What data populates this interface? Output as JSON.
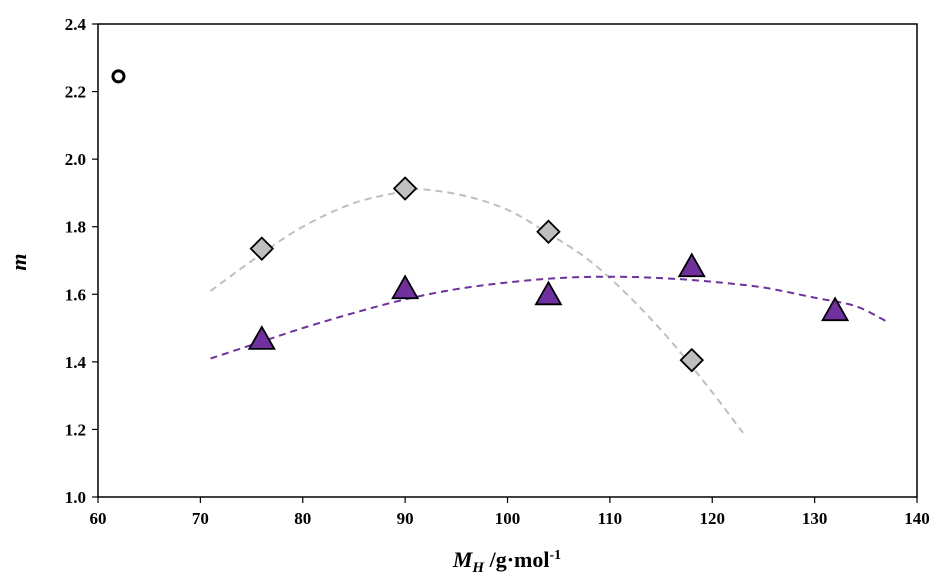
{
  "chart_data": {
    "type": "scatter",
    "title": "",
    "xlabel": {
      "main": "M",
      "sub": "H",
      "rest": " /g·mol",
      "sup": "-1"
    },
    "ylabel": "m",
    "xlim": [
      60,
      140
    ],
    "ylim": [
      1.0,
      2.4
    ],
    "xticks": [
      "60",
      "70",
      "80",
      "90",
      "100",
      "110",
      "120",
      "130",
      "140"
    ],
    "yticks": [
      "1.0",
      "1.2",
      "1.4",
      "1.6",
      "1.8",
      "2.0",
      "2.2",
      "2.4"
    ],
    "grid": false,
    "legend": "none",
    "series": [
      {
        "marker": "circle-open",
        "color": "#000000",
        "points": [
          [
            62,
            2.245
          ]
        ]
      },
      {
        "marker": "diamond",
        "color": "#bfbfbf",
        "points": [
          [
            76,
            1.735
          ],
          [
            90,
            1.913
          ],
          [
            104,
            1.785
          ],
          [
            118,
            1.405
          ]
        ],
        "trend": {
          "color": "#bfbfbf",
          "curve": [
            [
              71,
              1.61
            ],
            [
              76,
              1.72
            ],
            [
              80,
              1.8
            ],
            [
              85,
              1.87
            ],
            [
              90,
              1.905
            ],
            [
              92,
              1.91
            ],
            [
              96,
              1.89
            ],
            [
              100,
              1.85
            ],
            [
              104,
              1.78
            ],
            [
              108,
              1.7
            ],
            [
              112,
              1.59
            ],
            [
              116,
              1.46
            ],
            [
              120,
              1.31
            ],
            [
              123,
              1.19
            ]
          ]
        }
      },
      {
        "marker": "triangle",
        "color": "#7030a0",
        "points": [
          [
            76,
            1.465
          ],
          [
            90,
            1.615
          ],
          [
            104,
            1.597
          ],
          [
            118,
            1.68
          ],
          [
            132,
            1.55
          ]
        ],
        "trend": {
          "color": "#7030a0",
          "curve": [
            [
              71,
              1.41
            ],
            [
              76,
              1.46
            ],
            [
              80,
              1.5
            ],
            [
              85,
              1.545
            ],
            [
              90,
              1.585
            ],
            [
              95,
              1.615
            ],
            [
              100,
              1.635
            ],
            [
              105,
              1.648
            ],
            [
              110,
              1.652
            ],
            [
              115,
              1.648
            ],
            [
              120,
              1.637
            ],
            [
              125,
              1.62
            ],
            [
              130,
              1.59
            ],
            [
              134,
              1.565
            ],
            [
              137,
              1.52
            ]
          ]
        }
      }
    ]
  }
}
